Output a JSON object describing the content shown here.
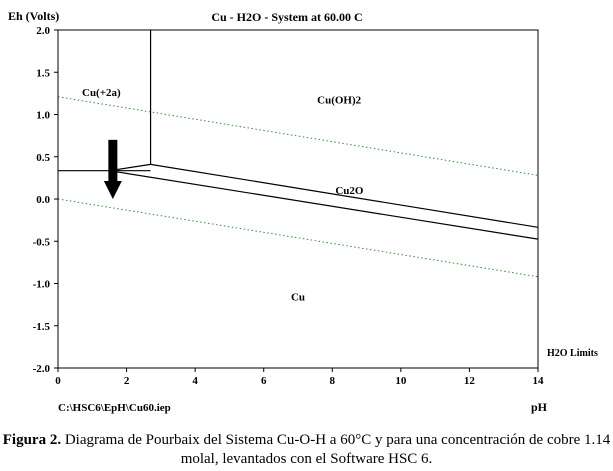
{
  "chart_data": {
    "type": "line",
    "title": "Cu - H2O - System at 60.00 C",
    "ylabel": "Eh (Volts)",
    "xlabel": "pH",
    "xlim": [
      0,
      14
    ],
    "ylim": [
      -2.0,
      2.0
    ],
    "x_ticks": [
      "0",
      "2",
      "4",
      "6",
      "8",
      "10",
      "12",
      "14"
    ],
    "y_ticks": [
      "2.0",
      "1.5",
      "1.0",
      "0.5",
      "0.0",
      "-0.5",
      "-1.0",
      "-1.5",
      "-2.0"
    ],
    "h2o_limits_label": "H2O Limits",
    "file_label": "C:\\HSC6\\EpH\\Cu60.iep",
    "regions": [
      {
        "label": "Cu(+2a)",
        "x": 0.7,
        "y": 1.22
      },
      {
        "label": "Cu(OH)2",
        "x": 8.2,
        "y": 1.13
      },
      {
        "label": "Cu2O",
        "x": 8.5,
        "y": 0.06
      },
      {
        "label": "Cu",
        "x": 7.0,
        "y": -1.2
      }
    ],
    "boundaries": [
      {
        "kind": "solid",
        "points": [
          [
            2.7,
            2.0
          ],
          [
            2.7,
            0.41
          ]
        ]
      },
      {
        "kind": "solid",
        "points": [
          [
            0.0,
            0.335
          ],
          [
            2.7,
            0.335
          ]
        ]
      },
      {
        "kind": "solid",
        "points": [
          [
            2.7,
            0.41
          ],
          [
            14.0,
            -0.335
          ]
        ]
      },
      {
        "kind": "solid",
        "points": [
          [
            1.5,
            0.335
          ],
          [
            14.0,
            -0.475
          ]
        ]
      },
      {
        "kind": "solid",
        "points": [
          [
            2.7,
            0.41
          ],
          [
            1.5,
            0.335
          ]
        ]
      },
      {
        "kind": "dotted",
        "points": [
          [
            0.0,
            1.21
          ],
          [
            14.0,
            0.28
          ]
        ]
      },
      {
        "kind": "dotted",
        "points": [
          [
            0.0,
            0.0
          ],
          [
            14.0,
            -0.92
          ]
        ]
      }
    ],
    "arrow": {
      "x": 1.6,
      "y_from": 0.7,
      "y_to": 0.0
    },
    "colors": {
      "axis": "#000000",
      "boundary": "#000000",
      "water_limits": "#3a8a3a",
      "arrow": "#000000"
    }
  },
  "caption": {
    "label": "Figura 2.",
    "text": "Diagrama de Pourbaix del Sistema Cu-O-H a 60°C y para una concentración de cobre 1.14 molal, levantados con el Software HSC 6."
  }
}
